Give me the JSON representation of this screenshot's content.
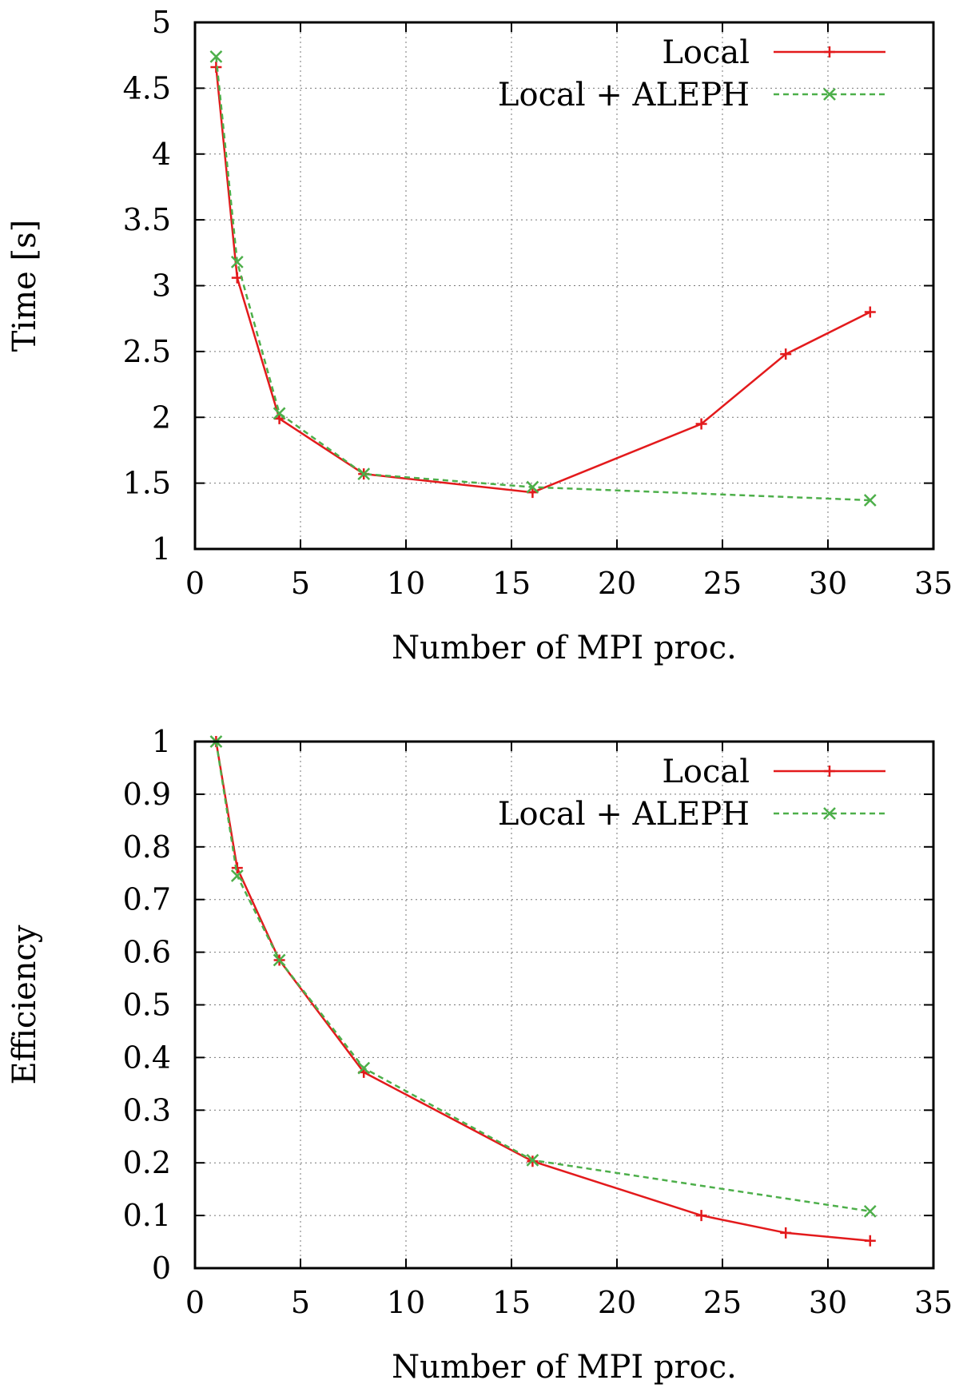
{
  "chart_data": [
    {
      "type": "line",
      "title": "",
      "xlabel": "Number of MPI proc.",
      "ylabel": "Time [s]",
      "xlim": [
        0,
        35
      ],
      "ylim": [
        1,
        5
      ],
      "xticks": [
        "0",
        "5",
        "10",
        "15",
        "20",
        "25",
        "30",
        "35"
      ],
      "yticks": [
        "1",
        "1.5",
        "2",
        "2.5",
        "3",
        "3.5",
        "4",
        "4.5",
        "5"
      ],
      "grid": true,
      "legend_position": "top-right",
      "series": [
        {
          "name": "Local",
          "color": "#e31a1c",
          "style": "solid",
          "marker": "plus",
          "x": [
            1,
            2,
            4,
            8,
            16,
            24,
            28,
            32
          ],
          "y": [
            4.66,
            3.06,
            1.99,
            1.57,
            1.43,
            1.95,
            2.48,
            2.8
          ]
        },
        {
          "name": "Local + ALEPH",
          "color": "#4daf4a",
          "style": "dashed",
          "marker": "cross",
          "x": [
            1,
            2,
            4,
            8,
            16,
            32
          ],
          "y": [
            4.74,
            3.18,
            2.03,
            1.57,
            1.47,
            1.37
          ]
        }
      ]
    },
    {
      "type": "line",
      "title": "",
      "xlabel": "Number of MPI proc.",
      "ylabel": "Efficiency",
      "xlim": [
        0,
        35
      ],
      "ylim": [
        0,
        1
      ],
      "xticks": [
        "0",
        "5",
        "10",
        "15",
        "20",
        "25",
        "30",
        "35"
      ],
      "yticks": [
        "0",
        "0.1",
        "0.2",
        "0.3",
        "0.4",
        "0.5",
        "0.6",
        "0.7",
        "0.8",
        "0.9",
        "1"
      ],
      "grid": true,
      "legend_position": "top-right",
      "series": [
        {
          "name": "Local",
          "color": "#e31a1c",
          "style": "solid",
          "marker": "plus",
          "x": [
            1,
            2,
            4,
            8,
            16,
            24,
            28,
            32
          ],
          "y": [
            1.0,
            0.76,
            0.585,
            0.372,
            0.203,
            0.1,
            0.067,
            0.052
          ]
        },
        {
          "name": "Local + ALEPH",
          "color": "#4daf4a",
          "style": "dashed",
          "marker": "cross",
          "x": [
            1,
            2,
            4,
            8,
            16,
            32
          ],
          "y": [
            1.0,
            0.745,
            0.585,
            0.38,
            0.205,
            0.108
          ]
        }
      ]
    }
  ]
}
